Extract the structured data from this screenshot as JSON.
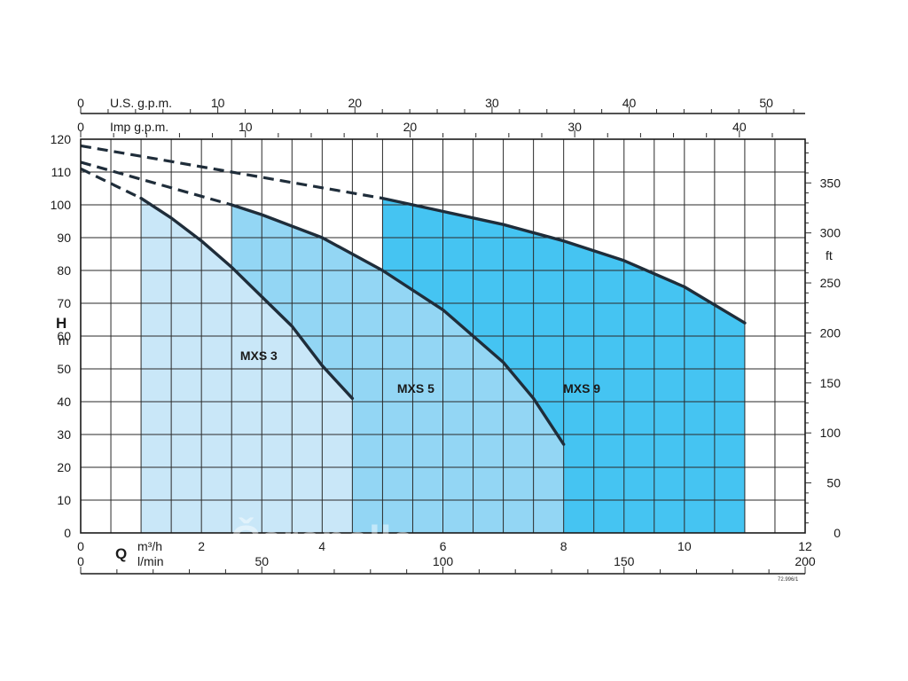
{
  "chart_data": {
    "type": "area",
    "x_primary": {
      "unit": "m³/h",
      "range": [
        0,
        12
      ],
      "ticks": [
        0,
        2,
        4,
        6,
        8,
        10,
        12
      ]
    },
    "x_secondary": {
      "unit": "l/min",
      "range": [
        0,
        200
      ],
      "ticks": [
        0,
        50,
        100,
        150,
        200
      ]
    },
    "x_top_us": {
      "label": "U.S. g.p.m.",
      "ticks": [
        0,
        10,
        20,
        30,
        40,
        50
      ]
    },
    "x_top_imp": {
      "label": "Imp g.p.m.",
      "ticks": [
        0,
        10,
        20,
        30,
        40
      ]
    },
    "q_label": "Q",
    "y_left": {
      "label": "H",
      "unit": "m",
      "range": [
        0,
        120
      ],
      "ticks": [
        0,
        10,
        20,
        30,
        40,
        50,
        60,
        70,
        80,
        90,
        100,
        110,
        120
      ]
    },
    "y_right": {
      "unit": "ft",
      "ticks": [
        0,
        50,
        100,
        150,
        200,
        250,
        300,
        350
      ]
    },
    "grid": true,
    "series": [
      {
        "name": "MXS 3",
        "color": "#c9e7f8",
        "q_range": [
          1.0,
          4.5
        ],
        "shutoff_head": 111,
        "points": [
          [
            1.0,
            102
          ],
          [
            1.5,
            96
          ],
          [
            2.0,
            89
          ],
          [
            2.5,
            81
          ],
          [
            3.0,
            72
          ],
          [
            3.5,
            63
          ],
          [
            4.0,
            51
          ],
          [
            4.5,
            41
          ]
        ]
      },
      {
        "name": "MXS 5",
        "color": "#93d6f4",
        "q_range": [
          2.5,
          8.0
        ],
        "shutoff_head": 113,
        "points": [
          [
            2.5,
            100
          ],
          [
            3.0,
            97
          ],
          [
            4.0,
            90
          ],
          [
            5.0,
            80
          ],
          [
            6.0,
            68
          ],
          [
            7.0,
            52
          ],
          [
            7.5,
            41
          ],
          [
            8.0,
            27
          ]
        ]
      },
      {
        "name": "MXS 9",
        "color": "#45c4f2",
        "q_range": [
          5.0,
          11.0
        ],
        "shutoff_head": 118,
        "points": [
          [
            5.0,
            102
          ],
          [
            6.0,
            98
          ],
          [
            7.0,
            94
          ],
          [
            8.0,
            89
          ],
          [
            9.0,
            83
          ],
          [
            10.0,
            75
          ],
          [
            11.0,
            64
          ]
        ]
      }
    ]
  },
  "figure_code": "72.996/1",
  "watermark": "Čarapalla"
}
